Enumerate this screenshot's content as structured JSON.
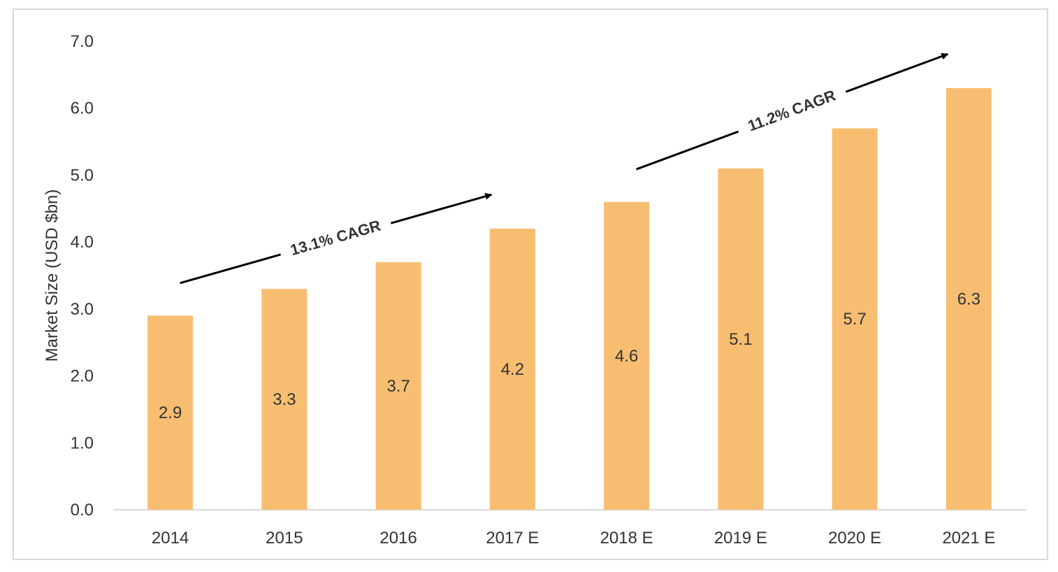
{
  "chart_data": {
    "type": "bar",
    "title": "",
    "xlabel": "",
    "ylabel": "Market Size (USD $bn)",
    "ylim": [
      0,
      7
    ],
    "yticks": [
      "0.0",
      "1.0",
      "2.0",
      "3.0",
      "4.0",
      "5.0",
      "6.0",
      "7.0"
    ],
    "ytick_values": [
      0,
      1,
      2,
      3,
      4,
      5,
      6,
      7
    ],
    "categories": [
      "2014",
      "2015",
      "2016",
      "2017 E",
      "2018 E",
      "2019 E",
      "2020 E",
      "2021 E"
    ],
    "values": [
      2.9,
      3.3,
      3.7,
      4.2,
      4.6,
      5.1,
      5.7,
      6.3
    ],
    "data_labels": [
      "2.9",
      "3.3",
      "3.7",
      "4.2",
      "4.6",
      "5.1",
      "5.7",
      "6.3"
    ],
    "grid": false,
    "legend": "none",
    "bar_color": "#f7be72",
    "annotations": [
      {
        "text": "13.1% CAGR",
        "from_category": "2014",
        "to_category": "2017 E"
      },
      {
        "text": "11.2% CAGR",
        "from_category": "2018 E",
        "to_category": "2021 E"
      }
    ]
  }
}
